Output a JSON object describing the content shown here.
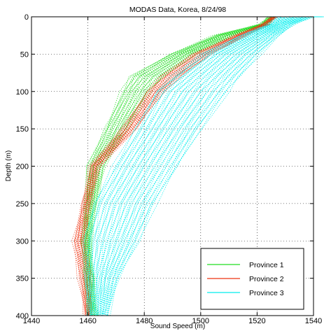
{
  "chart_data": {
    "type": "line",
    "title": "MODAS Data, Korea, 8/24/98",
    "xlabel": "Sound Speed (m)",
    "ylabel": "Depth (m)",
    "xlim": [
      1440,
      1540
    ],
    "ylim": [
      0,
      400
    ],
    "y_reversed": true,
    "grid": true,
    "grid_style": "dotted",
    "xticks": [
      1440,
      1460,
      1480,
      1500,
      1520,
      1540
    ],
    "yticks": [
      0,
      50,
      100,
      150,
      200,
      250,
      300,
      350,
      400
    ],
    "legend_position": "bottom-right",
    "legend": [
      "Province 1",
      "Province 2",
      "Province 3"
    ],
    "line_style": "dotted, many profiles per province",
    "series": [
      {
        "name": "Province 1",
        "color": "#22dd22",
        "profile_count": 28,
        "envelope_left": {
          "depth": [
            0,
            10,
            25,
            50,
            80,
            100,
            150,
            200,
            250,
            300,
            350,
            400
          ],
          "speed": [
            1524,
            1521,
            1505,
            1489,
            1475,
            1472,
            1466,
            1460,
            1459,
            1458,
            1459,
            1460
          ]
        },
        "envelope_right": {
          "depth": [
            0,
            10,
            25,
            50,
            80,
            100,
            150,
            200,
            250,
            300,
            350,
            400
          ],
          "speed": [
            1526,
            1524,
            1512,
            1498,
            1487,
            1482,
            1474,
            1466,
            1463,
            1461,
            1462,
            1463
          ]
        }
      },
      {
        "name": "Province 2",
        "color": "#ee3311",
        "profile_count": 22,
        "envelope_left": {
          "depth": [
            0,
            10,
            25,
            50,
            80,
            100,
            150,
            200,
            250,
            300,
            350,
            400
          ],
          "speed": [
            1525,
            1522,
            1512,
            1497,
            1486,
            1481,
            1472,
            1461,
            1458,
            1455,
            1457,
            1459
          ]
        },
        "envelope_right": {
          "depth": [
            0,
            10,
            25,
            50,
            80,
            100,
            150,
            200,
            250,
            300,
            350,
            400
          ],
          "speed": [
            1527,
            1524,
            1516,
            1504,
            1493,
            1487,
            1477,
            1464,
            1461,
            1459,
            1461,
            1461
          ]
        }
      },
      {
        "name": "Province 3",
        "color": "#00eeee",
        "profile_count": 45,
        "envelope_left": {
          "depth": [
            0,
            10,
            25,
            50,
            80,
            100,
            150,
            200,
            250,
            300,
            350,
            400
          ],
          "speed": [
            1527,
            1524,
            1514,
            1500,
            1490,
            1484,
            1477,
            1469,
            1462,
            1459,
            1459,
            1460
          ]
        },
        "envelope_right": {
          "depth": [
            0,
            10,
            25,
            50,
            80,
            100,
            150,
            200,
            250,
            300,
            350,
            400
          ],
          "speed": [
            1540,
            1533,
            1528,
            1521,
            1514,
            1510,
            1500,
            1492,
            1484,
            1478,
            1471,
            1467
          ]
        }
      }
    ]
  }
}
